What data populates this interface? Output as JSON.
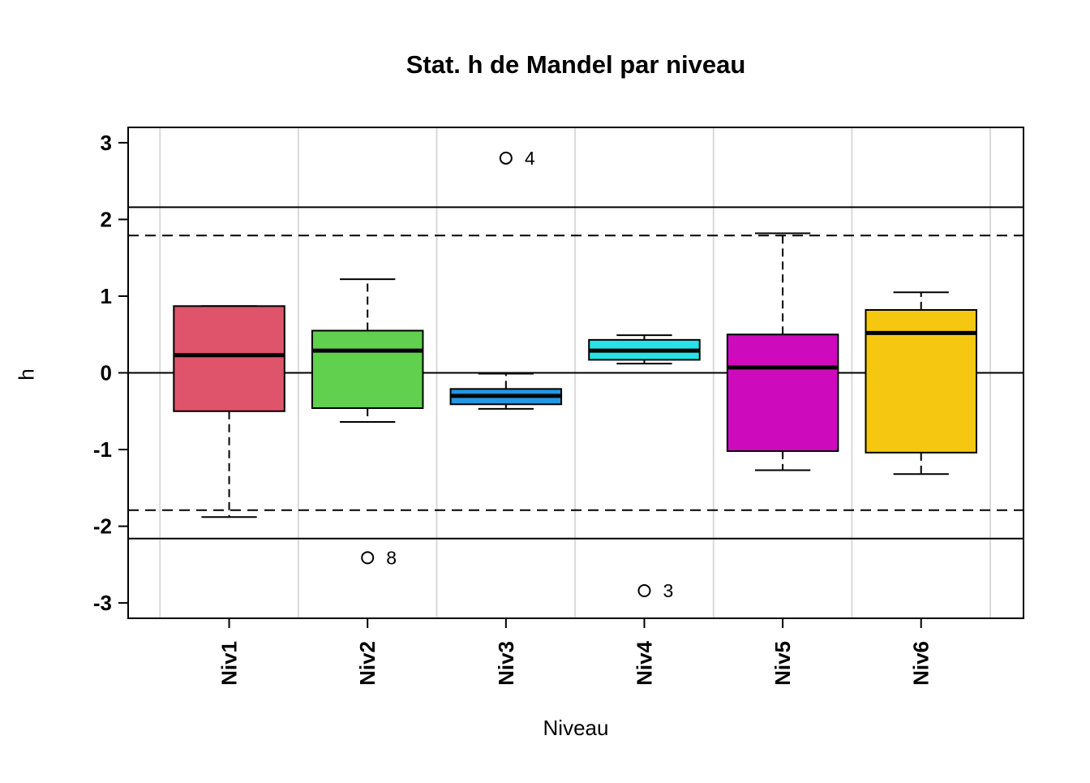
{
  "title": "Stat. h de Mandel par niveau",
  "axes": {
    "x_label": "Niveau",
    "y_label": "h",
    "y_tick_labels": [
      "3",
      "2",
      "1",
      "0",
      "-1",
      "-2",
      "-3"
    ]
  },
  "colors": {
    "background": "#ffffff",
    "box_border": "#000000",
    "median_line": "#000000",
    "reference_line": "#000000",
    "gridline": "#d9d9d9",
    "outlier_stroke": "#000000"
  },
  "chart_data": {
    "type": "boxplot",
    "title": "Stat. h de Mandel par niveau",
    "xlabel": "Niveau",
    "ylabel": "h",
    "categories": [
      "Niv1",
      "Niv2",
      "Niv3",
      "Niv4",
      "Niv5",
      "Niv6"
    ],
    "ylim": [
      -3.2,
      3.2
    ],
    "yticks": [
      3,
      2,
      1,
      0,
      -1,
      -2,
      -3
    ],
    "xlim": [
      0.27,
      6.74
    ],
    "grid": "vertical-only",
    "vertical_gridlines_x": [
      0.5,
      1.5,
      2.5,
      3.5,
      4.5,
      5.5,
      6.5
    ],
    "reference_lines": [
      {
        "y": 2.16,
        "style": "solid",
        "note": "Mandel h critical upper (solid)"
      },
      {
        "y": 1.79,
        "style": "dashed",
        "note": "Mandel h warning upper (dashed)"
      },
      {
        "y": 0,
        "style": "solid",
        "note": "zero line"
      },
      {
        "y": -1.79,
        "style": "dashed",
        "note": "Mandel h warning lower (dashed)"
      },
      {
        "y": -2.16,
        "style": "solid",
        "note": "Mandel h critical lower (solid)"
      }
    ],
    "box_width": 0.8,
    "series": [
      {
        "name": "Niv1",
        "color": "#DF536B",
        "whisker_low": -1.88,
        "q1": -0.5,
        "median": 0.23,
        "q3": 0.87,
        "whisker_high": 0.87,
        "outliers": []
      },
      {
        "name": "Niv2",
        "color": "#61D04F",
        "whisker_low": -0.64,
        "q1": -0.46,
        "median": 0.29,
        "q3": 0.55,
        "whisker_high": 1.22,
        "outliers": [
          {
            "value": -2.41,
            "label": "8"
          }
        ]
      },
      {
        "name": "Niv3",
        "color": "#2297E6",
        "whisker_low": -0.47,
        "q1": -0.41,
        "median": -0.3,
        "q3": -0.21,
        "whisker_high": -0.01,
        "outliers": [
          {
            "value": 2.8,
            "label": "4"
          }
        ]
      },
      {
        "name": "Niv4",
        "color": "#28E2E5",
        "whisker_low": 0.12,
        "q1": 0.17,
        "median": 0.29,
        "q3": 0.43,
        "whisker_high": 0.49,
        "outliers": [
          {
            "value": -2.84,
            "label": "3"
          }
        ]
      },
      {
        "name": "Niv5",
        "color": "#CD0BBC",
        "whisker_low": -1.27,
        "q1": -1.02,
        "median": 0.07,
        "q3": 0.5,
        "whisker_high": 1.82,
        "outliers": []
      },
      {
        "name": "Niv6",
        "color": "#F5C710",
        "whisker_low": -1.32,
        "q1": -1.04,
        "median": 0.52,
        "q3": 0.82,
        "whisker_high": 1.05,
        "outliers": []
      }
    ]
  }
}
